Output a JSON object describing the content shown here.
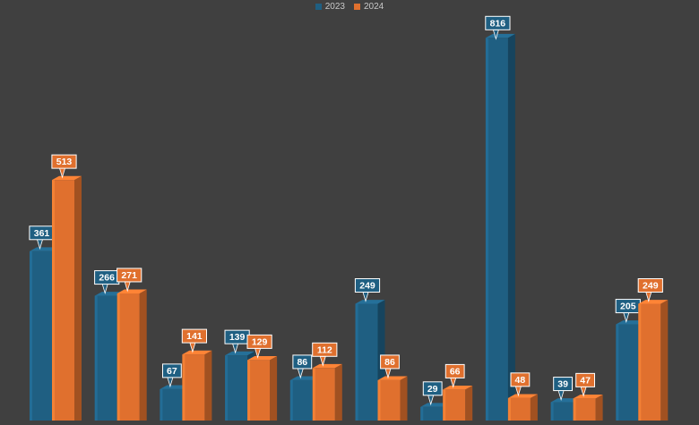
{
  "chart_data": {
    "type": "bar",
    "categories": [
      "",
      "",
      "",
      "",
      "",
      "",
      "",
      "",
      "",
      ""
    ],
    "series": [
      {
        "name": "2023",
        "color": "#1f5f82",
        "values": [
          361,
          266,
          67,
          139,
          86,
          249,
          29,
          816,
          39,
          205
        ]
      },
      {
        "name": "2024",
        "color": "#e0702e",
        "values": [
          513,
          271,
          141,
          129,
          112,
          86,
          66,
          48,
          47,
          249
        ]
      }
    ],
    "ylim": [
      0,
      870
    ],
    "grid": false,
    "legend_position": "top-center",
    "data_labels": true,
    "style": "3d-columns"
  }
}
